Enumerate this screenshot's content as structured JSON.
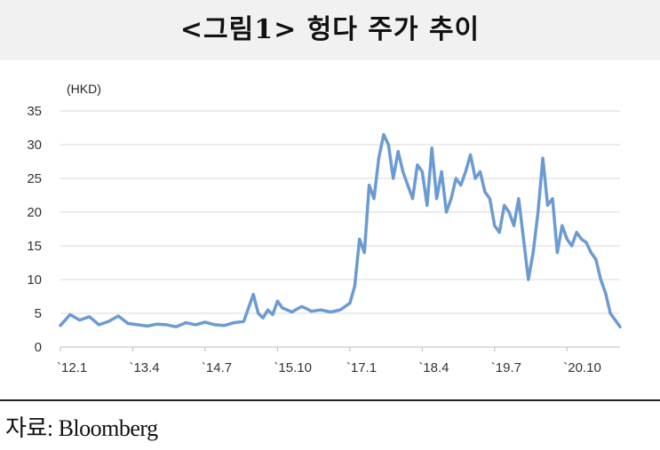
{
  "title": "<그림1> 헝다 주가 추이",
  "source": "자료: Bloomberg",
  "colors": {
    "line": "#6b9bd2",
    "grid": "#d9d9d9",
    "axis": "#bfbfbf",
    "title_bg": "#f1f1f1"
  },
  "chart_data": {
    "type": "line",
    "title": "<그림1> 헝다 주가 추이",
    "unit_label": "(HKD)",
    "xlabel": "",
    "ylabel": "",
    "ylim": [
      0,
      35
    ],
    "yticks": [
      0,
      5,
      10,
      15,
      20,
      25,
      30,
      35
    ],
    "grid": true,
    "legend": "none",
    "xlim": [
      "2012-01",
      "2021-09"
    ],
    "xticks": [
      {
        "label": "`12.1",
        "date": "2012-01"
      },
      {
        "label": "`13.4",
        "date": "2013-04"
      },
      {
        "label": "`14.7",
        "date": "2014-07"
      },
      {
        "label": "`15.10",
        "date": "2015-10"
      },
      {
        "label": "`17.1",
        "date": "2017-01"
      },
      {
        "label": "`18.4",
        "date": "2018-04"
      },
      {
        "label": "`19.7",
        "date": "2019-07"
      },
      {
        "label": "`20.10",
        "date": "2020-10"
      }
    ],
    "series": [
      {
        "x": [
          "2012-01",
          "2012-03",
          "2012-05",
          "2012-07",
          "2012-09",
          "2012-11",
          "2013-01",
          "2013-03",
          "2013-05",
          "2013-07",
          "2013-09",
          "2013-11",
          "2014-01",
          "2014-03",
          "2014-05",
          "2014-07",
          "2014-09",
          "2014-11",
          "2015-01",
          "2015-03",
          "2015-05",
          "2015-06",
          "2015-07",
          "2015-08",
          "2015-09",
          "2015-10",
          "2015-11",
          "2016-01",
          "2016-02",
          "2016-03",
          "2016-04",
          "2016-05",
          "2016-07",
          "2016-09",
          "2016-11",
          "2017-01",
          "2017-02",
          "2017-03",
          "2017-04",
          "2017-05",
          "2017-06",
          "2017-07",
          "2017-08",
          "2017-09",
          "2017-10",
          "2017-11",
          "2017-12",
          "2018-01",
          "2018-02",
          "2018-03",
          "2018-04",
          "2018-05",
          "2018-06",
          "2018-07",
          "2018-08",
          "2018-09",
          "2018-10",
          "2018-11",
          "2018-12",
          "2019-01",
          "2019-02",
          "2019-03",
          "2019-04",
          "2019-05",
          "2019-06",
          "2019-07",
          "2019-08",
          "2019-09",
          "2019-10",
          "2019-11",
          "2019-12",
          "2020-01",
          "2020-02",
          "2020-03",
          "2020-04",
          "2020-05",
          "2020-06",
          "2020-07",
          "2020-08",
          "2020-09",
          "2020-10",
          "2020-11",
          "2020-12",
          "2021-01",
          "2021-02",
          "2021-03",
          "2021-04",
          "2021-05",
          "2021-06",
          "2021-07",
          "2021-08",
          "2021-09"
        ],
        "values": [
          3.2,
          4.8,
          4.0,
          4.5,
          3.3,
          3.8,
          4.6,
          3.5,
          3.3,
          3.1,
          3.4,
          3.3,
          3.0,
          3.6,
          3.3,
          3.7,
          3.3,
          3.2,
          3.6,
          3.8,
          7.8,
          5.0,
          4.3,
          5.5,
          4.8,
          6.8,
          5.8,
          5.2,
          5.6,
          6.0,
          5.7,
          5.3,
          5.5,
          5.2,
          5.5,
          6.5,
          9.0,
          16.0,
          14.0,
          24.0,
          22.0,
          28.0,
          31.5,
          30.0,
          25.0,
          29.0,
          26.0,
          24.0,
          22.0,
          27.0,
          26.0,
          21.0,
          29.5,
          22.0,
          26.0,
          20.0,
          22.0,
          25.0,
          24.0,
          26.0,
          28.5,
          25.0,
          26.0,
          23.0,
          22.0,
          18.0,
          17.0,
          21.0,
          20.0,
          18.0,
          22.0,
          16.0,
          10.0,
          14.0,
          20.0,
          28.0,
          21.0,
          22.0,
          14.0,
          18.0,
          16.0,
          15.0,
          17.0,
          16.0,
          15.5,
          14.0,
          13.0,
          10.0,
          8.0,
          5.0,
          4.0,
          3.0
        ]
      }
    ]
  }
}
